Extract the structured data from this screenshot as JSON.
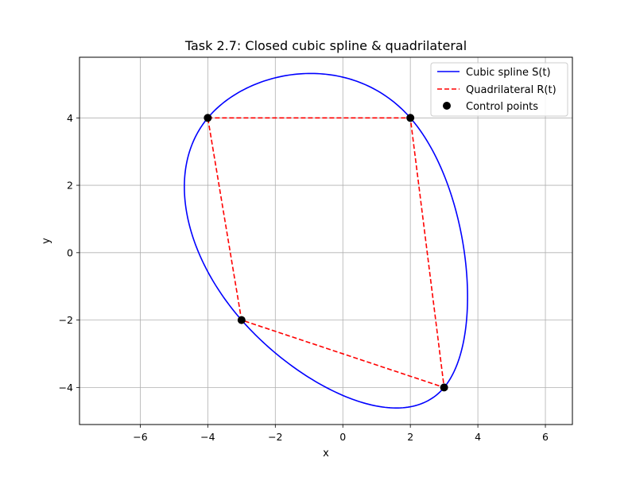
{
  "chart_data": {
    "type": "line",
    "title": "Task 2.7: Closed cubic spline & quadrilateral",
    "xlabel": "x",
    "ylabel": "y",
    "xlim": [
      -7.8,
      6.8
    ],
    "ylim": [
      -5.1,
      5.8
    ],
    "xticks": [
      -6,
      -4,
      -2,
      0,
      2,
      4,
      6
    ],
    "yticks": [
      -4,
      -2,
      0,
      2,
      4
    ],
    "xtick_labels": [
      "−6",
      "−4",
      "−2",
      "0",
      "2",
      "4",
      "6"
    ],
    "ytick_labels": [
      "−4",
      "−2",
      "0",
      "2",
      "4"
    ],
    "grid": true,
    "legend_position": "top-right",
    "control_points": [
      {
        "x": -4,
        "y": 4
      },
      {
        "x": 2,
        "y": 4
      },
      {
        "x": 3,
        "y": -4
      },
      {
        "x": -3,
        "y": -2
      }
    ],
    "series": [
      {
        "name": "Cubic spline S(t)",
        "style": "solid",
        "color": "#0000ff"
      },
      {
        "name": "Quadrilateral R(t)",
        "style": "dashed",
        "color": "#ff0000"
      },
      {
        "name": "Control points",
        "style": "marker",
        "color": "#000000"
      }
    ]
  }
}
